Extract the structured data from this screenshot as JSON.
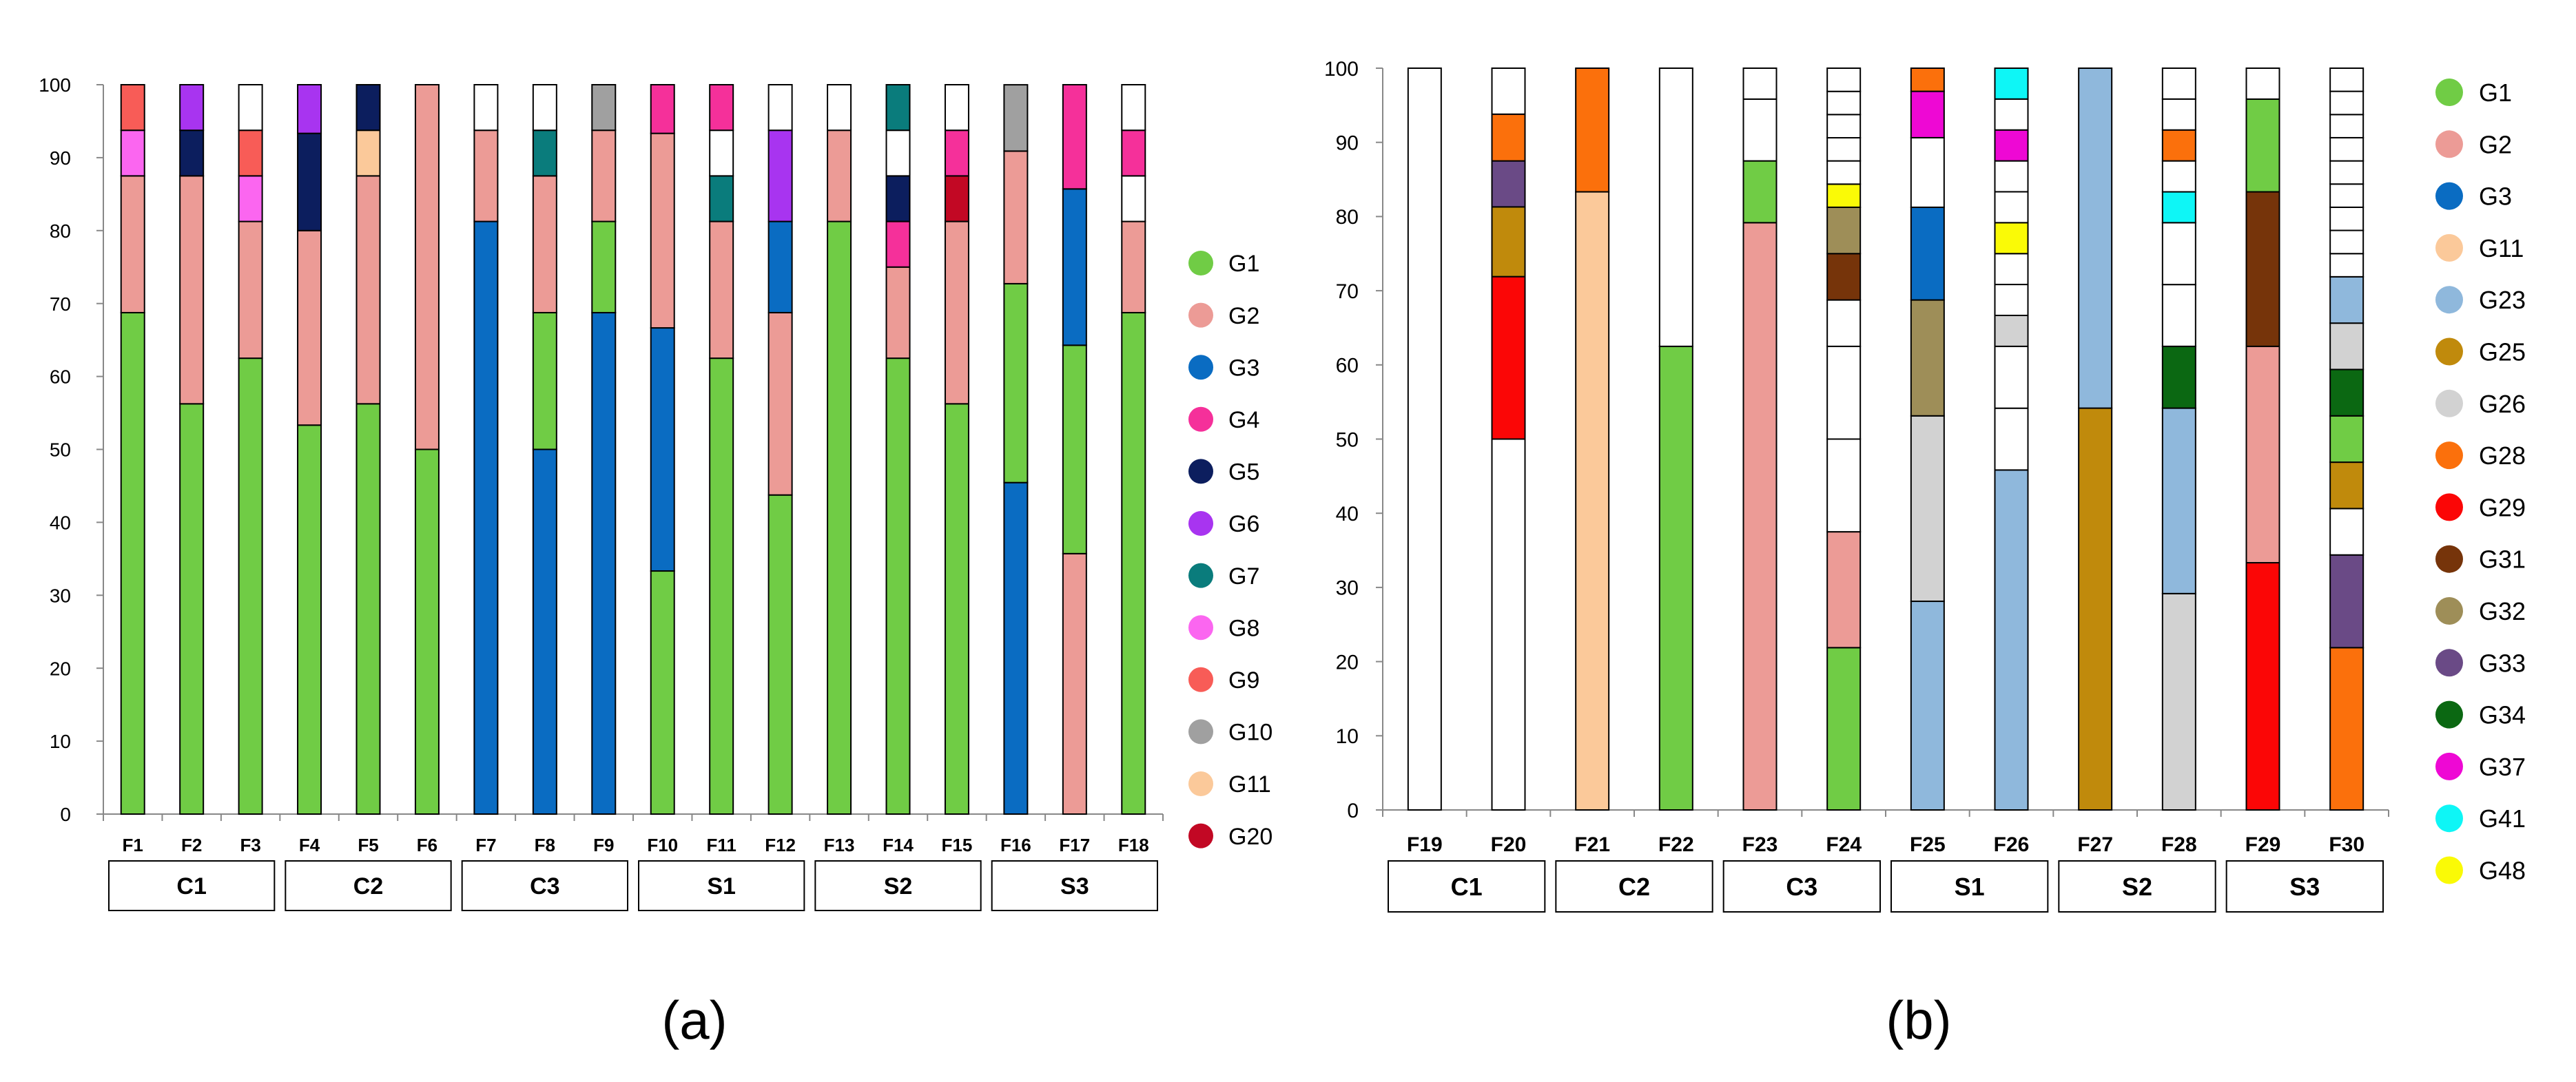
{
  "colors": {
    "G1": "#70cc45",
    "G2": "#ec9b96",
    "G3": "#0a6cc2",
    "G4": "#f5309a",
    "G5": "#0c1e5e",
    "G6": "#a834f0",
    "G7": "#0a7c7c",
    "G8": "#fb66f0",
    "G9": "#f85c57",
    "G10": "#a0a0a0",
    "G11": "#fbc99a",
    "G20": "#c20824",
    "G23": "#8fb8dc",
    "G25": "#c08a0c",
    "G26": "#d2d2d2",
    "G28": "#fb700c",
    "G29": "#fb0606",
    "G31": "#76340a",
    "G32": "#9e8e58",
    "G33": "#6a4a86",
    "G34": "#0b6812",
    "G37": "#ee08d4",
    "G41": "#0ef6f6",
    "G48": "#fafa06",
    "white": "#ffffff"
  },
  "chart_data": [
    {
      "type": "bar",
      "stacked": true,
      "caption": "(a)",
      "ylim": [
        0,
        100
      ],
      "yticks": [
        "0",
        "10",
        "20",
        "30",
        "40",
        "50",
        "60",
        "70",
        "80",
        "90",
        "100"
      ],
      "categories": [
        "F1",
        "F2",
        "F3",
        "F4",
        "F5",
        "F6",
        "F7",
        "F8",
        "F9",
        "F10",
        "F11",
        "F12",
        "F13",
        "F14",
        "F15",
        "F16",
        "F17",
        "F18"
      ],
      "groups": [
        {
          "label": "C1",
          "members": [
            "F1",
            "F2",
            "F3"
          ]
        },
        {
          "label": "C2",
          "members": [
            "F4",
            "F5",
            "F6"
          ]
        },
        {
          "label": "C3",
          "members": [
            "F7",
            "F8",
            "F9"
          ]
        },
        {
          "label": "S1",
          "members": [
            "F10",
            "F11",
            "F12"
          ]
        },
        {
          "label": "S2",
          "members": [
            "F13",
            "F14",
            "F15"
          ]
        },
        {
          "label": "S3",
          "members": [
            "F16",
            "F17",
            "F18"
          ]
        }
      ],
      "legend": [
        "G1",
        "G2",
        "G3",
        "G4",
        "G5",
        "G6",
        "G7",
        "G8",
        "G9",
        "G10",
        "G11",
        "G20"
      ],
      "bars": [
        {
          "x": "F1",
          "segments": [
            {
              "g": "G1",
              "v": 68.75
            },
            {
              "g": "G2",
              "v": 18.75
            },
            {
              "g": "G8",
              "v": 6.25
            },
            {
              "g": "G9",
              "v": 6.25
            }
          ]
        },
        {
          "x": "F2",
          "segments": [
            {
              "g": "G1",
              "v": 56.25
            },
            {
              "g": "G2",
              "v": 31.25
            },
            {
              "g": "G5",
              "v": 6.25
            },
            {
              "g": "G6",
              "v": 6.25
            }
          ]
        },
        {
          "x": "F3",
          "segments": [
            {
              "g": "G1",
              "v": 62.5
            },
            {
              "g": "G2",
              "v": 18.75
            },
            {
              "g": "G8",
              "v": 6.25
            },
            {
              "g": "G9",
              "v": 6.25
            },
            {
              "g": "white",
              "v": 6.25
            }
          ]
        },
        {
          "x": "F4",
          "segments": [
            {
              "g": "G1",
              "v": 53.33
            },
            {
              "g": "G2",
              "v": 26.67
            },
            {
              "g": "G5",
              "v": 13.33
            },
            {
              "g": "G6",
              "v": 6.67
            }
          ]
        },
        {
          "x": "F5",
          "segments": [
            {
              "g": "G1",
              "v": 56.25
            },
            {
              "g": "G2",
              "v": 31.25
            },
            {
              "g": "G11",
              "v": 6.25
            },
            {
              "g": "G5",
              "v": 6.25
            }
          ]
        },
        {
          "x": "F6",
          "segments": [
            {
              "g": "G1",
              "v": 50
            },
            {
              "g": "G2",
              "v": 50
            }
          ]
        },
        {
          "x": "F7",
          "segments": [
            {
              "g": "G3",
              "v": 81.25
            },
            {
              "g": "G2",
              "v": 12.5
            },
            {
              "g": "white",
              "v": 6.25
            }
          ]
        },
        {
          "x": "F8",
          "segments": [
            {
              "g": "G3",
              "v": 50
            },
            {
              "g": "G1",
              "v": 18.75
            },
            {
              "g": "G2",
              "v": 18.75
            },
            {
              "g": "G7",
              "v": 6.25
            },
            {
              "g": "white",
              "v": 6.25
            }
          ]
        },
        {
          "x": "F9",
          "segments": [
            {
              "g": "G3",
              "v": 68.75
            },
            {
              "g": "G1",
              "v": 12.5
            },
            {
              "g": "G2",
              "v": 12.5
            },
            {
              "g": "G10",
              "v": 6.25
            }
          ]
        },
        {
          "x": "F10",
          "segments": [
            {
              "g": "G1",
              "v": 33.33
            },
            {
              "g": "G3",
              "v": 33.33
            },
            {
              "g": "G2",
              "v": 26.67
            },
            {
              "g": "G4",
              "v": 6.67
            }
          ]
        },
        {
          "x": "F11",
          "segments": [
            {
              "g": "G1",
              "v": 62.5
            },
            {
              "g": "G2",
              "v": 18.75
            },
            {
              "g": "G7",
              "v": 6.25
            },
            {
              "g": "white",
              "v": 6.25
            },
            {
              "g": "G4",
              "v": 6.25
            }
          ]
        },
        {
          "x": "F12",
          "segments": [
            {
              "g": "G1",
              "v": 43.75
            },
            {
              "g": "G2",
              "v": 25
            },
            {
              "g": "G3",
              "v": 12.5
            },
            {
              "g": "G6",
              "v": 12.5
            },
            {
              "g": "white",
              "v": 6.25
            }
          ]
        },
        {
          "x": "F13",
          "segments": [
            {
              "g": "G1",
              "v": 81.25
            },
            {
              "g": "G2",
              "v": 12.5
            },
            {
              "g": "white",
              "v": 6.25
            }
          ]
        },
        {
          "x": "F14",
          "segments": [
            {
              "g": "G1",
              "v": 62.5
            },
            {
              "g": "G2",
              "v": 12.5
            },
            {
              "g": "G4",
              "v": 6.25
            },
            {
              "g": "G5",
              "v": 6.25
            },
            {
              "g": "white",
              "v": 6.25
            },
            {
              "g": "G7",
              "v": 6.25
            }
          ]
        },
        {
          "x": "F15",
          "segments": [
            {
              "g": "G1",
              "v": 56.25
            },
            {
              "g": "G2",
              "v": 25
            },
            {
              "g": "G20",
              "v": 6.25
            },
            {
              "g": "G4",
              "v": 6.25
            },
            {
              "g": "white",
              "v": 6.25
            }
          ]
        },
        {
          "x": "F16",
          "segments": [
            {
              "g": "G3",
              "v": 45.45
            },
            {
              "g": "G1",
              "v": 27.27
            },
            {
              "g": "G2",
              "v": 18.18
            },
            {
              "g": "G10",
              "v": 9.09
            }
          ]
        },
        {
          "x": "F17",
          "segments": [
            {
              "g": "G2",
              "v": 35.71
            },
            {
              "g": "G1",
              "v": 28.57
            },
            {
              "g": "G3",
              "v": 21.43
            },
            {
              "g": "G4",
              "v": 14.29
            }
          ]
        },
        {
          "x": "F18",
          "segments": [
            {
              "g": "G1",
              "v": 68.75
            },
            {
              "g": "G2",
              "v": 12.5
            },
            {
              "g": "white",
              "v": 6.25
            },
            {
              "g": "G4",
              "v": 6.25
            },
            {
              "g": "white",
              "v": 6.25
            }
          ]
        }
      ]
    },
    {
      "type": "bar",
      "stacked": true,
      "caption": "(b)",
      "ylim": [
        0,
        100
      ],
      "yticks": [
        "0",
        "10",
        "20",
        "30",
        "40",
        "50",
        "60",
        "70",
        "80",
        "90",
        "100"
      ],
      "categories": [
        "F19",
        "F20",
        "F21",
        "F22",
        "F23",
        "F24",
        "F25",
        "F26",
        "F27",
        "F28",
        "F29",
        "F30"
      ],
      "groups": [
        {
          "label": "C1",
          "members": [
            "F19",
            "F20"
          ]
        },
        {
          "label": "C2",
          "members": [
            "F21",
            "F22"
          ]
        },
        {
          "label": "C3",
          "members": [
            "F23",
            "F24"
          ]
        },
        {
          "label": "S1",
          "members": [
            "F25",
            "F26"
          ]
        },
        {
          "label": "S2",
          "members": [
            "F27",
            "F28"
          ]
        },
        {
          "label": "S3",
          "members": [
            "F29",
            "F30"
          ]
        }
      ],
      "legend": [
        "G1",
        "G2",
        "G3",
        "G11",
        "G23",
        "G25",
        "G26",
        "G28",
        "G29",
        "G31",
        "G32",
        "G33",
        "G34",
        "G37",
        "G41",
        "G48"
      ],
      "bars": [
        {
          "x": "F19",
          "segments": [
            {
              "g": "white",
              "v": 100
            }
          ]
        },
        {
          "x": "F20",
          "segments": [
            {
              "g": "white",
              "v": 50
            },
            {
              "g": "G29",
              "v": 21.9
            },
            {
              "g": "G25",
              "v": 9.4
            },
            {
              "g": "G33",
              "v": 6.2
            },
            {
              "g": "G28",
              "v": 6.3
            },
            {
              "g": "white",
              "v": 6.2
            }
          ]
        },
        {
          "x": "F21",
          "segments": [
            {
              "g": "G11",
              "v": 83.33
            },
            {
              "g": "G28",
              "v": 16.67
            }
          ]
        },
        {
          "x": "F22",
          "segments": [
            {
              "g": "G1",
              "v": 62.5
            },
            {
              "g": "white",
              "v": 37.5
            }
          ]
        },
        {
          "x": "F23",
          "segments": [
            {
              "g": "G2",
              "v": 79.17
            },
            {
              "g": "G1",
              "v": 8.33
            },
            {
              "g": "white",
              "v": 8.33
            },
            {
              "g": "white",
              "v": 4.17
            }
          ]
        },
        {
          "x": "F24",
          "segments": [
            {
              "g": "G1",
              "v": 21.88
            },
            {
              "g": "G2",
              "v": 15.62
            },
            {
              "g": "white",
              "v": 12.5
            },
            {
              "g": "white",
              "v": 12.5
            },
            {
              "g": "white",
              "v": 6.25
            },
            {
              "g": "G31",
              "v": 6.25
            },
            {
              "g": "G32",
              "v": 6.25
            },
            {
              "g": "G48",
              "v": 3.12
            },
            {
              "g": "white",
              "v": 3.13
            },
            {
              "g": "white",
              "v": 3.12
            },
            {
              "g": "white",
              "v": 3.13
            },
            {
              "g": "white",
              "v": 3.12
            },
            {
              "g": "white",
              "v": 3.13
            }
          ]
        },
        {
          "x": "F25",
          "segments": [
            {
              "g": "G23",
              "v": 28.13
            },
            {
              "g": "G26",
              "v": 25
            },
            {
              "g": "G32",
              "v": 15.62
            },
            {
              "g": "G3",
              "v": 12.5
            },
            {
              "g": "white",
              "v": 9.38
            },
            {
              "g": "G37",
              "v": 6.25
            },
            {
              "g": "G28",
              "v": 3.12
            }
          ]
        },
        {
          "x": "F26",
          "segments": [
            {
              "g": "G23",
              "v": 45.83
            },
            {
              "g": "white",
              "v": 8.33
            },
            {
              "g": "white",
              "v": 8.34
            },
            {
              "g": "G26",
              "v": 4.17
            },
            {
              "g": "white",
              "v": 4.17
            },
            {
              "g": "white",
              "v": 4.16
            },
            {
              "g": "G48",
              "v": 4.17
            },
            {
              "g": "white",
              "v": 4.17
            },
            {
              "g": "white",
              "v": 4.16
            },
            {
              "g": "G37",
              "v": 4.17
            },
            {
              "g": "white",
              "v": 4.17
            },
            {
              "g": "G41",
              "v": 4.16
            }
          ]
        },
        {
          "x": "F27",
          "segments": [
            {
              "g": "G25",
              "v": 54.17
            },
            {
              "g": "G23",
              "v": 45.83
            }
          ]
        },
        {
          "x": "F28",
          "segments": [
            {
              "g": "G26",
              "v": 29.17
            },
            {
              "g": "G23",
              "v": 25
            },
            {
              "g": "G34",
              "v": 8.33
            },
            {
              "g": "white",
              "v": 8.33
            },
            {
              "g": "white",
              "v": 8.34
            },
            {
              "g": "G41",
              "v": 4.16
            },
            {
              "g": "white",
              "v": 4.17
            },
            {
              "g": "G28",
              "v": 4.17
            },
            {
              "g": "white",
              "v": 4.17
            },
            {
              "g": "white",
              "v": 4.16
            }
          ]
        },
        {
          "x": "F29",
          "segments": [
            {
              "g": "G29",
              "v": 33.33
            },
            {
              "g": "G2",
              "v": 29.17
            },
            {
              "g": "G31",
              "v": 20.83
            },
            {
              "g": "G1",
              "v": 12.5
            },
            {
              "g": "white",
              "v": 4.17
            }
          ]
        },
        {
          "x": "F30",
          "segments": [
            {
              "g": "G28",
              "v": 21.88
            },
            {
              "g": "G33",
              "v": 12.5
            },
            {
              "g": "white",
              "v": 6.25
            },
            {
              "g": "G25",
              "v": 6.25
            },
            {
              "g": "G1",
              "v": 6.25
            },
            {
              "g": "G34",
              "v": 6.25
            },
            {
              "g": "G26",
              "v": 6.25
            },
            {
              "g": "G23",
              "v": 6.25
            },
            {
              "g": "white",
              "v": 3.12
            },
            {
              "g": "white",
              "v": 3.13
            },
            {
              "g": "white",
              "v": 3.12
            },
            {
              "g": "white",
              "v": 3.13
            },
            {
              "g": "white",
              "v": 3.12
            },
            {
              "g": "white",
              "v": 3.13
            },
            {
              "g": "white",
              "v": 3.12
            },
            {
              "g": "white",
              "v": 3.13
            },
            {
              "g": "white",
              "v": 3.12
            }
          ]
        }
      ]
    }
  ]
}
